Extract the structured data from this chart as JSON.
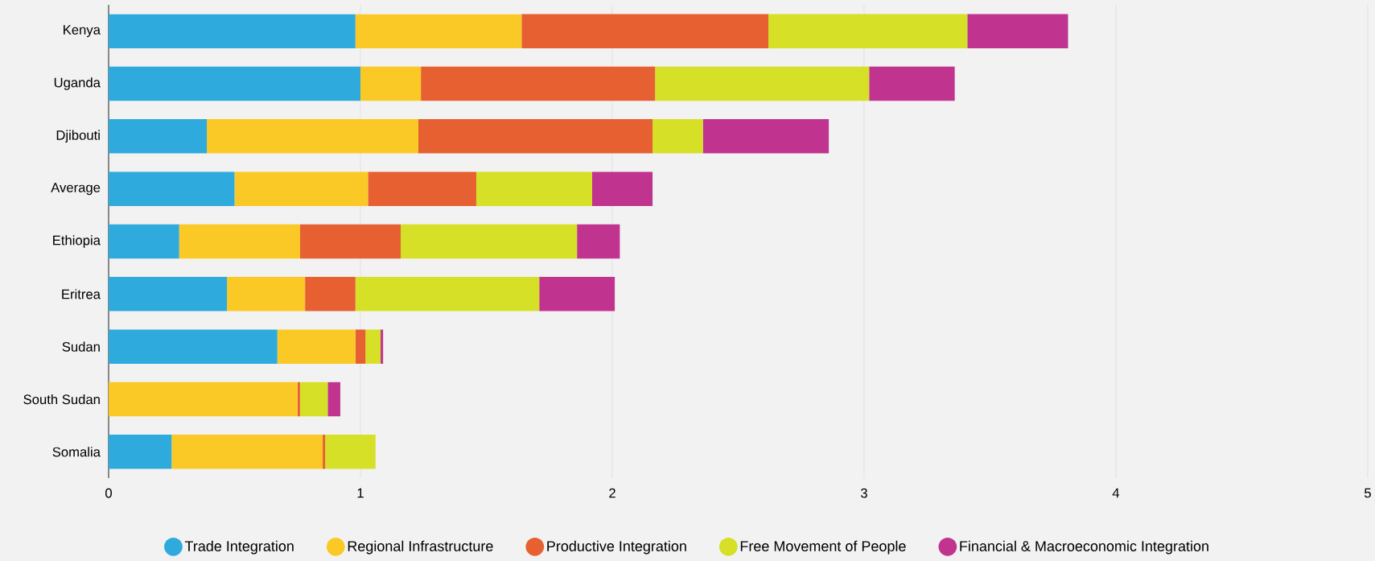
{
  "chart_data": {
    "type": "bar",
    "orientation": "horizontal",
    "stacked": true,
    "grid": "x",
    "legend": "bottom",
    "categories": [
      "Kenya",
      "Uganda",
      "Djibouti",
      "Average",
      "Ethiopia",
      "Eritrea",
      "Sudan",
      "South Sudan",
      "Somalia"
    ],
    "xlim": [
      0,
      5
    ],
    "xticks": [
      0,
      1,
      2,
      3,
      4,
      5
    ],
    "series": [
      {
        "name": "Trade Integration",
        "color": "#2eaadc",
        "values": [
          0.98,
          1.0,
          0.39,
          0.5,
          0.28,
          0.47,
          0.67,
          0,
          0.25
        ]
      },
      {
        "name": "Regional Infrastructure",
        "color": "#fbc926",
        "values": [
          0.66,
          0.24,
          0.84,
          0.53,
          0.48,
          0.31,
          0.31,
          0.75,
          0.6
        ]
      },
      {
        "name": "Productive Integration",
        "color": "#e66032",
        "values": [
          0.98,
          0.93,
          0.93,
          0.43,
          0.4,
          0.2,
          0.04,
          0.01,
          0.01
        ]
      },
      {
        "name": "Free Movement of People",
        "color": "#d5e026",
        "values": [
          0.79,
          0.85,
          0.2,
          0.46,
          0.7,
          0.73,
          0.06,
          0.11,
          0.2
        ]
      },
      {
        "name": "Financial & Macroeconomic Integration",
        "color": "#c03490",
        "values": [
          0.4,
          0.34,
          0.5,
          0.24,
          0.17,
          0.3,
          0.01,
          0.05,
          0
        ]
      }
    ]
  }
}
